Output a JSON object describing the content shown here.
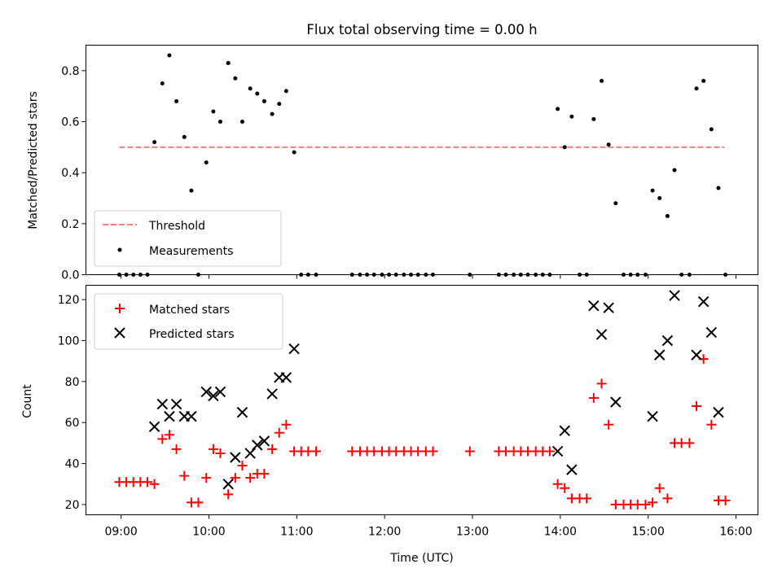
{
  "chart_data": [
    {
      "type": "scatter",
      "title": "Flux total observing time = 0.00 h",
      "ylabel": "Matched/Predicted stars",
      "xlabel": "",
      "ylim": [
        0,
        0.9
      ],
      "yticks": [
        0,
        0.2,
        0.4,
        0.6,
        0.8
      ],
      "ytick_labels": [
        "0.0",
        "0.2",
        "0.4",
        "0.6",
        "0.8"
      ],
      "xlim": [
        8.6,
        16.25
      ],
      "xticks": [
        9,
        10,
        11,
        12,
        13,
        14,
        15,
        16
      ],
      "grid": false,
      "legend_position": "lower-left",
      "threshold": {
        "name": "Threshold",
        "color": "#f08080",
        "x": [
          8.98,
          15.87
        ],
        "y": 0.5
      },
      "measurements": {
        "name": "Measurements",
        "color": "#000000",
        "points": [
          [
            8.98,
            0.0
          ],
          [
            9.06,
            0.0
          ],
          [
            9.14,
            0.0
          ],
          [
            9.22,
            0.0
          ],
          [
            9.3,
            0.0
          ],
          [
            9.38,
            0.52
          ],
          [
            9.47,
            0.75
          ],
          [
            9.55,
            0.86
          ],
          [
            9.63,
            0.68
          ],
          [
            9.72,
            0.54
          ],
          [
            9.8,
            0.33
          ],
          [
            9.88,
            0.0
          ],
          [
            9.97,
            0.44
          ],
          [
            10.05,
            0.64
          ],
          [
            10.13,
            0.6
          ],
          [
            10.22,
            0.83
          ],
          [
            10.3,
            0.77
          ],
          [
            10.38,
            0.6
          ],
          [
            10.47,
            0.73
          ],
          [
            10.55,
            0.71
          ],
          [
            10.63,
            0.68
          ],
          [
            10.72,
            0.63
          ],
          [
            10.8,
            0.67
          ],
          [
            10.88,
            0.72
          ],
          [
            10.97,
            0.48
          ],
          [
            11.05,
            0.0
          ],
          [
            11.13,
            0.0
          ],
          [
            11.22,
            0.0
          ],
          [
            11.63,
            0.0
          ],
          [
            11.72,
            0.0
          ],
          [
            11.8,
            0.0
          ],
          [
            11.88,
            0.0
          ],
          [
            11.97,
            0.0
          ],
          [
            12.05,
            0.0
          ],
          [
            12.13,
            0.0
          ],
          [
            12.22,
            0.0
          ],
          [
            12.3,
            0.0
          ],
          [
            12.38,
            0.0
          ],
          [
            12.47,
            0.0
          ],
          [
            12.55,
            0.0
          ],
          [
            12.97,
            0.0
          ],
          [
            13.3,
            0.0
          ],
          [
            13.38,
            0.0
          ],
          [
            13.47,
            0.0
          ],
          [
            13.55,
            0.0
          ],
          [
            13.63,
            0.0
          ],
          [
            13.72,
            0.0
          ],
          [
            13.8,
            0.0
          ],
          [
            13.88,
            0.0
          ],
          [
            13.97,
            0.65
          ],
          [
            14.05,
            0.5
          ],
          [
            14.13,
            0.62
          ],
          [
            14.22,
            0.0
          ],
          [
            14.3,
            0.0
          ],
          [
            14.38,
            0.61
          ],
          [
            14.47,
            0.76
          ],
          [
            14.55,
            0.51
          ],
          [
            14.63,
            0.28
          ],
          [
            14.72,
            0.0
          ],
          [
            14.8,
            0.0
          ],
          [
            14.88,
            0.0
          ],
          [
            14.97,
            0.0
          ],
          [
            15.05,
            0.33
          ],
          [
            15.13,
            0.3
          ],
          [
            15.22,
            0.23
          ],
          [
            15.3,
            0.41
          ],
          [
            15.38,
            0.0
          ],
          [
            15.47,
            0.0
          ],
          [
            15.55,
            0.73
          ],
          [
            15.63,
            0.76
          ],
          [
            15.72,
            0.57
          ],
          [
            15.8,
            0.34
          ],
          [
            15.88,
            0.0
          ]
        ]
      }
    },
    {
      "type": "scatter",
      "xlabel": "Time (UTC)",
      "ylabel": "Count",
      "ylim": [
        15,
        127
      ],
      "yticks": [
        20,
        40,
        60,
        80,
        100,
        120
      ],
      "ytick_labels": [
        "20",
        "40",
        "60",
        "80",
        "100",
        "120"
      ],
      "xlim": [
        8.6,
        16.25
      ],
      "xticks": [
        9,
        10,
        11,
        12,
        13,
        14,
        15,
        16
      ],
      "xtick_labels": [
        "09:00",
        "10:00",
        "11:00",
        "12:00",
        "13:00",
        "14:00",
        "15:00",
        "16:00"
      ],
      "grid": false,
      "legend_position": "top-left",
      "series": [
        {
          "name": "Matched stars",
          "marker": "plus",
          "color": "#ff0000",
          "points": [
            [
              8.98,
              31
            ],
            [
              9.06,
              31
            ],
            [
              9.14,
              31
            ],
            [
              9.22,
              31
            ],
            [
              9.3,
              31
            ],
            [
              9.38,
              30
            ],
            [
              9.47,
              52
            ],
            [
              9.55,
              54
            ],
            [
              9.63,
              47
            ],
            [
              9.72,
              34
            ],
            [
              9.8,
              21
            ],
            [
              9.88,
              21
            ],
            [
              9.97,
              33
            ],
            [
              10.05,
              47
            ],
            [
              10.13,
              45
            ],
            [
              10.22,
              25
            ],
            [
              10.3,
              33
            ],
            [
              10.38,
              39
            ],
            [
              10.47,
              33
            ],
            [
              10.55,
              35
            ],
            [
              10.63,
              35
            ],
            [
              10.72,
              47
            ],
            [
              10.8,
              55
            ],
            [
              10.88,
              59
            ],
            [
              10.97,
              46
            ],
            [
              11.05,
              46
            ],
            [
              11.13,
              46
            ],
            [
              11.22,
              46
            ],
            [
              11.63,
              46
            ],
            [
              11.72,
              46
            ],
            [
              11.8,
              46
            ],
            [
              11.88,
              46
            ],
            [
              11.97,
              46
            ],
            [
              12.05,
              46
            ],
            [
              12.13,
              46
            ],
            [
              12.22,
              46
            ],
            [
              12.3,
              46
            ],
            [
              12.38,
              46
            ],
            [
              12.47,
              46
            ],
            [
              12.55,
              46
            ],
            [
              12.97,
              46
            ],
            [
              13.3,
              46
            ],
            [
              13.38,
              46
            ],
            [
              13.47,
              46
            ],
            [
              13.55,
              46
            ],
            [
              13.63,
              46
            ],
            [
              13.72,
              46
            ],
            [
              13.8,
              46
            ],
            [
              13.88,
              46
            ],
            [
              13.97,
              30
            ],
            [
              14.05,
              28
            ],
            [
              14.13,
              23
            ],
            [
              14.22,
              23
            ],
            [
              14.3,
              23
            ],
            [
              14.38,
              72
            ],
            [
              14.47,
              79
            ],
            [
              14.55,
              59
            ],
            [
              14.63,
              20
            ],
            [
              14.72,
              20
            ],
            [
              14.8,
              20
            ],
            [
              14.88,
              20
            ],
            [
              14.97,
              20
            ],
            [
              15.05,
              21
            ],
            [
              15.13,
              28
            ],
            [
              15.22,
              23
            ],
            [
              15.3,
              50
            ],
            [
              15.38,
              50
            ],
            [
              15.47,
              50
            ],
            [
              15.55,
              68
            ],
            [
              15.63,
              91
            ],
            [
              15.72,
              59
            ],
            [
              15.8,
              22
            ],
            [
              15.88,
              22
            ]
          ]
        },
        {
          "name": "Predicted stars",
          "marker": "x",
          "color": "#000000",
          "points": [
            [
              9.38,
              58
            ],
            [
              9.47,
              69
            ],
            [
              9.55,
              63
            ],
            [
              9.63,
              69
            ],
            [
              9.72,
              63
            ],
            [
              9.8,
              63
            ],
            [
              9.97,
              75
            ],
            [
              10.05,
              73
            ],
            [
              10.13,
              75
            ],
            [
              10.22,
              30
            ],
            [
              10.3,
              43
            ],
            [
              10.38,
              65
            ],
            [
              10.47,
              45
            ],
            [
              10.55,
              49
            ],
            [
              10.63,
              51
            ],
            [
              10.72,
              74
            ],
            [
              10.8,
              82
            ],
            [
              10.88,
              82
            ],
            [
              10.97,
              96
            ],
            [
              13.97,
              46
            ],
            [
              14.05,
              56
            ],
            [
              14.13,
              37
            ],
            [
              14.38,
              117
            ],
            [
              14.47,
              103
            ],
            [
              14.55,
              116
            ],
            [
              14.63,
              70
            ],
            [
              15.05,
              63
            ],
            [
              15.13,
              93
            ],
            [
              15.22,
              100
            ],
            [
              15.3,
              122
            ],
            [
              15.55,
              93
            ],
            [
              15.63,
              119
            ],
            [
              15.72,
              104
            ],
            [
              15.8,
              65
            ]
          ]
        }
      ]
    }
  ]
}
